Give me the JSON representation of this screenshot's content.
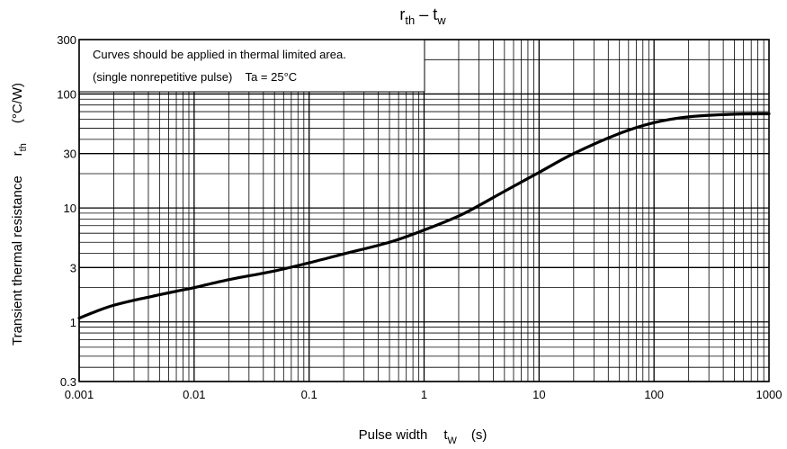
{
  "chart_data": {
    "type": "line",
    "title": {
      "main": "r",
      "sub1": "th",
      "dash": " – t",
      "sub2": "w"
    },
    "xlabel": {
      "text": "Pulse width",
      "sym": "t",
      "sub": "W",
      "unit": "(s)"
    },
    "ylabel": {
      "text": "Transient thermal resistance",
      "sym": "r",
      "sub": "th",
      "unit": "(°C/W)"
    },
    "x_scale": "log",
    "y_scale": "log",
    "xlim": [
      0.001,
      1000
    ],
    "ylim": [
      0.3,
      300
    ],
    "x_ticks": [
      {
        "value": 0.001,
        "label": "0.001"
      },
      {
        "value": 0.01,
        "label": "0.01"
      },
      {
        "value": 0.1,
        "label": "0.1"
      },
      {
        "value": 1,
        "label": "1"
      },
      {
        "value": 10,
        "label": "10"
      },
      {
        "value": 100,
        "label": "100"
      },
      {
        "value": 1000,
        "label": "1000"
      }
    ],
    "y_ticks": [
      {
        "value": 0.3,
        "label": "0.3"
      },
      {
        "value": 1,
        "label": "1"
      },
      {
        "value": 3,
        "label": "3"
      },
      {
        "value": 10,
        "label": "10"
      },
      {
        "value": 30,
        "label": "30"
      },
      {
        "value": 100,
        "label": "100"
      },
      {
        "value": 300,
        "label": "300"
      }
    ],
    "grid": true,
    "annotation": {
      "line1": "Curves should be applied in thermal limited area.",
      "line2": "(single nonrepetitive pulse)    Ta = 25°C"
    },
    "series": [
      {
        "x": [
          0.001,
          0.0015,
          0.002,
          0.003,
          0.005,
          0.007,
          0.01,
          0.02,
          0.05,
          0.1,
          0.2,
          0.5,
          1,
          2,
          3,
          5,
          10,
          20,
          50,
          100,
          200,
          500,
          1000
        ],
        "y": [
          1.08,
          1.27,
          1.4,
          1.55,
          1.73,
          1.86,
          2.0,
          2.35,
          2.8,
          3.3,
          3.95,
          5.0,
          6.4,
          8.5,
          10.5,
          14.0,
          20.5,
          30.0,
          45.0,
          56.0,
          63.0,
          66.5,
          67.0
        ]
      }
    ]
  }
}
